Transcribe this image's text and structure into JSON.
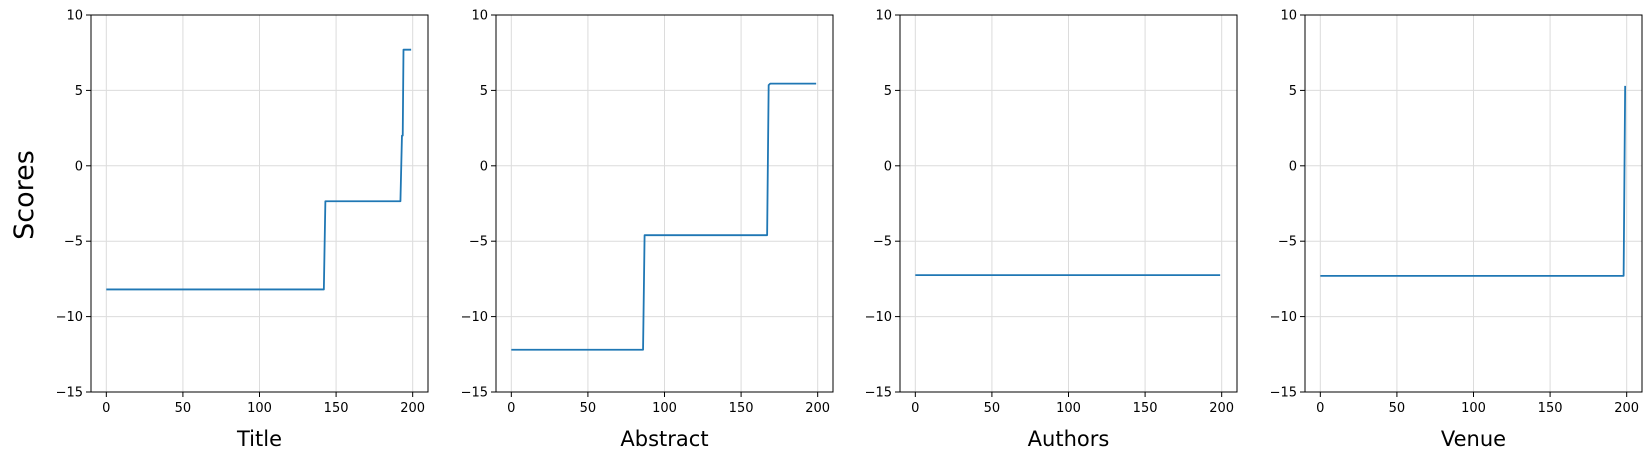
{
  "figure": {
    "ylabel": "Scores"
  },
  "chart_data": [
    {
      "type": "line",
      "xlabel": "Title",
      "ylabel": "Scores",
      "xlim": [
        -10,
        210
      ],
      "ylim": [
        -15,
        10
      ],
      "xticks": [
        0,
        50,
        100,
        150,
        200
      ],
      "yticks": [
        -15,
        -10,
        -5,
        0,
        5,
        10
      ],
      "grid": true,
      "series": [
        {
          "color": "#1f77b4",
          "x": [
            0,
            142,
            143,
            192,
            193,
            193.5,
            194,
            199
          ],
          "y": [
            -8.2,
            -8.2,
            -2.35,
            -2.35,
            2.0,
            2.0,
            7.7,
            7.7
          ]
        }
      ]
    },
    {
      "type": "line",
      "xlabel": "Abstract",
      "ylabel": "",
      "xlim": [
        -10,
        210
      ],
      "ylim": [
        -15,
        10
      ],
      "xticks": [
        0,
        50,
        100,
        150,
        200
      ],
      "yticks": [
        -15,
        -10,
        -5,
        0,
        5,
        10
      ],
      "grid": true,
      "series": [
        {
          "color": "#1f77b4",
          "x": [
            0,
            86,
            87,
            167,
            168,
            169,
            199
          ],
          "y": [
            -12.2,
            -12.2,
            -4.6,
            -4.6,
            5.35,
            5.45,
            5.45
          ]
        }
      ]
    },
    {
      "type": "line",
      "xlabel": "Authors",
      "ylabel": "",
      "xlim": [
        -10,
        210
      ],
      "ylim": [
        -15,
        10
      ],
      "xticks": [
        0,
        50,
        100,
        150,
        200
      ],
      "yticks": [
        -15,
        -10,
        -5,
        0,
        5,
        10
      ],
      "grid": true,
      "series": [
        {
          "color": "#1f77b4",
          "x": [
            0,
            199
          ],
          "y": [
            -7.25,
            -7.25
          ]
        }
      ]
    },
    {
      "type": "line",
      "xlabel": "Venue",
      "ylabel": "",
      "xlim": [
        -10,
        210
      ],
      "ylim": [
        -15,
        10
      ],
      "xticks": [
        0,
        50,
        100,
        150,
        200
      ],
      "yticks": [
        -15,
        -10,
        -5,
        0,
        5,
        10
      ],
      "grid": true,
      "series": [
        {
          "color": "#1f77b4",
          "x": [
            0,
            198,
            199
          ],
          "y": [
            -7.3,
            -7.3,
            5.3
          ]
        }
      ]
    }
  ]
}
